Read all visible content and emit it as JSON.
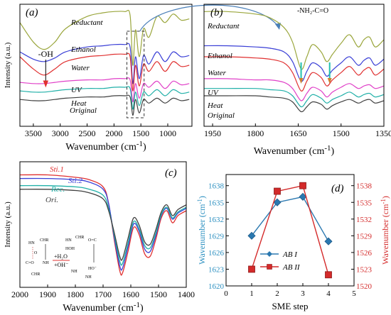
{
  "chart_data": [
    {
      "panel_label": "(a)",
      "type": "line",
      "xlabel": "Wavenumber (cm-1)",
      "xlabel_text": "Wavenumber (cm",
      "xlabel_sup": "-1",
      "xlabel_close": ")",
      "ylabel": "Intensity (a.u.)",
      "xlim": [
        3750,
        550
      ],
      "x_ticks": [
        "3500",
        "3000",
        "2500",
        "2000",
        "1500",
        "1000"
      ],
      "x_tick_values": [
        3500,
        3000,
        2500,
        2000,
        1500,
        1000
      ],
      "annotation": "-OH",
      "series": [
        {
          "name": "Reductant",
          "color": "#9aa63c",
          "x": [
            3750,
            3500,
            3300,
            3100,
            2900,
            2500,
            2200,
            2000,
            1800,
            1700,
            1650,
            1600,
            1530,
            1450,
            1350,
            1200,
            1050,
            900,
            750,
            600
          ],
          "y": [
            0.9,
            0.74,
            0.68,
            0.74,
            0.85,
            0.95,
            0.98,
            0.99,
            0.99,
            0.96,
            0.55,
            0.84,
            0.62,
            0.85,
            0.78,
            0.95,
            0.9,
            0.97,
            0.92,
            0.93
          ]
        },
        {
          "name": "Ethanol",
          "color": "#3a3fd6",
          "x": [
            3750,
            3500,
            3300,
            3100,
            2900,
            2500,
            2200,
            2000,
            1800,
            1700,
            1650,
            1600,
            1530,
            1450,
            1350,
            1200,
            1050,
            900,
            750,
            600
          ],
          "y": [
            0.66,
            0.6,
            0.58,
            0.61,
            0.66,
            0.7,
            0.71,
            0.72,
            0.72,
            0.7,
            0.4,
            0.62,
            0.44,
            0.63,
            0.56,
            0.66,
            0.58,
            0.66,
            0.62,
            0.63
          ]
        },
        {
          "name": "Water",
          "color": "#e03030",
          "x": [
            3750,
            3500,
            3300,
            3100,
            2900,
            2500,
            2200,
            2000,
            1800,
            1700,
            1650,
            1600,
            1530,
            1450,
            1350,
            1200,
            1050,
            900,
            750,
            600
          ],
          "y": [
            0.62,
            0.52,
            0.47,
            0.52,
            0.58,
            0.62,
            0.63,
            0.64,
            0.64,
            0.62,
            0.34,
            0.55,
            0.38,
            0.56,
            0.5,
            0.58,
            0.5,
            0.58,
            0.54,
            0.55
          ]
        },
        {
          "name": "UV",
          "color": "#e040c8",
          "x": [
            3750,
            3500,
            3300,
            3100,
            2900,
            2500,
            2200,
            2000,
            1800,
            1700,
            1650,
            1600,
            1530,
            1450,
            1350,
            1200,
            1050,
            900,
            750,
            600
          ],
          "y": [
            0.41,
            0.4,
            0.4,
            0.41,
            0.42,
            0.43,
            0.43,
            0.44,
            0.44,
            0.43,
            0.25,
            0.4,
            0.28,
            0.4,
            0.37,
            0.42,
            0.36,
            0.42,
            0.39,
            0.4
          ]
        },
        {
          "name": "Heat",
          "color": "#20b0a8",
          "x": [
            3750,
            3500,
            3300,
            3100,
            2900,
            2500,
            2200,
            2000,
            1800,
            1700,
            1650,
            1600,
            1530,
            1450,
            1350,
            1200,
            1050,
            900,
            750,
            600
          ],
          "y": [
            0.34,
            0.33,
            0.33,
            0.34,
            0.35,
            0.36,
            0.36,
            0.37,
            0.37,
            0.36,
            0.19,
            0.33,
            0.22,
            0.33,
            0.3,
            0.35,
            0.3,
            0.35,
            0.32,
            0.33
          ]
        },
        {
          "name": "Original",
          "color": "#404040",
          "x": [
            3750,
            3500,
            3300,
            3100,
            2900,
            2500,
            2200,
            2000,
            1800,
            1700,
            1650,
            1600,
            1530,
            1450,
            1350,
            1200,
            1050,
            900,
            750,
            600
          ],
          "y": [
            0.27,
            0.26,
            0.26,
            0.27,
            0.28,
            0.29,
            0.29,
            0.3,
            0.3,
            0.29,
            0.14,
            0.27,
            0.16,
            0.27,
            0.24,
            0.28,
            0.24,
            0.28,
            0.26,
            0.27
          ]
        }
      ]
    },
    {
      "panel_label": "(b)",
      "type": "line",
      "xlabel": "Wavenumber (cm-1)",
      "xlabel_text": "Wavenumber (cm",
      "xlabel_sup": "-1",
      "xlabel_close": ")",
      "ylabel": "Intensity (a.u.)",
      "xlim": [
        1980,
        1350
      ],
      "x_ticks": [
        "1950",
        "1800",
        "1650",
        "1500",
        "1350"
      ],
      "x_tick_values": [
        1950,
        1800,
        1650,
        1500,
        1350
      ],
      "annotation": "-NH₂-C=O",
      "series": [
        {
          "name": "Reductant",
          "color": "#9aa63c",
          "x": [
            1980,
            1900,
            1800,
            1750,
            1700,
            1670,
            1640,
            1620,
            1600,
            1570,
            1550,
            1530,
            1500,
            1470,
            1440,
            1420,
            1400,
            1380,
            1350
          ],
          "y": [
            0.99,
            0.99,
            0.97,
            0.94,
            0.86,
            0.74,
            0.52,
            0.62,
            0.72,
            0.66,
            0.58,
            0.64,
            0.73,
            0.8,
            0.7,
            0.76,
            0.78,
            0.7,
            0.76
          ]
        },
        {
          "name": "Ethanol",
          "color": "#3a3fd6",
          "x": [
            1980,
            1900,
            1800,
            1750,
            1700,
            1670,
            1640,
            1620,
            1600,
            1570,
            1550,
            1530,
            1500,
            1470,
            1440,
            1420,
            1400,
            1380,
            1350
          ],
          "y": [
            0.71,
            0.71,
            0.7,
            0.69,
            0.66,
            0.58,
            0.42,
            0.5,
            0.57,
            0.53,
            0.46,
            0.51,
            0.57,
            0.62,
            0.55,
            0.59,
            0.61,
            0.55,
            0.6
          ]
        },
        {
          "name": "Water",
          "color": "#e03030",
          "x": [
            1980,
            1900,
            1800,
            1750,
            1700,
            1670,
            1640,
            1620,
            1600,
            1570,
            1550,
            1530,
            1500,
            1470,
            1440,
            1420,
            1400,
            1380,
            1350
          ],
          "y": [
            0.62,
            0.62,
            0.61,
            0.6,
            0.57,
            0.49,
            0.34,
            0.42,
            0.49,
            0.45,
            0.38,
            0.43,
            0.49,
            0.54,
            0.47,
            0.51,
            0.53,
            0.47,
            0.52
          ]
        },
        {
          "name": "UV",
          "color": "#e040c8",
          "x": [
            1980,
            1900,
            1800,
            1750,
            1700,
            1670,
            1640,
            1620,
            1600,
            1570,
            1550,
            1530,
            1500,
            1470,
            1440,
            1420,
            1400,
            1380,
            1350
          ],
          "y": [
            0.44,
            0.44,
            0.43,
            0.43,
            0.41,
            0.36,
            0.26,
            0.32,
            0.37,
            0.34,
            0.29,
            0.33,
            0.37,
            0.4,
            0.36,
            0.38,
            0.39,
            0.36,
            0.38
          ]
        },
        {
          "name": "Heat",
          "color": "#20b0a8",
          "x": [
            1980,
            1900,
            1800,
            1750,
            1700,
            1670,
            1640,
            1620,
            1600,
            1570,
            1550,
            1530,
            1500,
            1470,
            1440,
            1420,
            1400,
            1380,
            1350
          ],
          "y": [
            0.36,
            0.36,
            0.36,
            0.35,
            0.34,
            0.3,
            0.21,
            0.26,
            0.31,
            0.28,
            0.24,
            0.27,
            0.3,
            0.33,
            0.29,
            0.31,
            0.32,
            0.29,
            0.31
          ]
        },
        {
          "name": "Original",
          "color": "#404040",
          "x": [
            1980,
            1900,
            1800,
            1750,
            1700,
            1670,
            1640,
            1620,
            1600,
            1570,
            1550,
            1530,
            1500,
            1470,
            1440,
            1420,
            1400,
            1380,
            1350
          ],
          "y": [
            0.3,
            0.3,
            0.3,
            0.29,
            0.28,
            0.25,
            0.17,
            0.21,
            0.25,
            0.23,
            0.19,
            0.22,
            0.25,
            0.27,
            0.24,
            0.26,
            0.27,
            0.24,
            0.26
          ]
        }
      ]
    },
    {
      "panel_label": "(c)",
      "type": "line",
      "xlabel": "Wavenumber (cm-1)",
      "xlabel_text": "Wavenumber (cm",
      "xlabel_sup": "-1",
      "xlabel_close": ")",
      "ylabel": "Intensity (a.u.)",
      "xlim": [
        2000,
        1400
      ],
      "x_ticks": [
        "2000",
        "1900",
        "1800",
        "1700",
        "1600",
        "1500",
        "1400"
      ],
      "x_tick_values": [
        2000,
        1900,
        1800,
        1700,
        1600,
        1500,
        1400
      ],
      "scheme_labels": [
        "+H₂O",
        "+OH⁻"
      ],
      "series": [
        {
          "name": "Sti.1",
          "color": "#e03030",
          "x": [
            2000,
            1900,
            1800,
            1750,
            1700,
            1680,
            1660,
            1640,
            1630,
            1610,
            1590,
            1570,
            1550,
            1530,
            1510,
            1490,
            1470,
            1450,
            1430,
            1400
          ],
          "y": [
            0.94,
            0.94,
            0.92,
            0.9,
            0.84,
            0.7,
            0.4,
            0.14,
            0.12,
            0.3,
            0.5,
            0.44,
            0.28,
            0.26,
            0.4,
            0.58,
            0.64,
            0.54,
            0.6,
            0.64
          ]
        },
        {
          "name": "Sti.2",
          "color": "#3a3fd6",
          "x": [
            2000,
            1900,
            1800,
            1750,
            1700,
            1680,
            1660,
            1640,
            1630,
            1610,
            1590,
            1570,
            1550,
            1530,
            1510,
            1490,
            1470,
            1450,
            1430,
            1400
          ],
          "y": [
            0.91,
            0.91,
            0.9,
            0.88,
            0.82,
            0.7,
            0.42,
            0.18,
            0.16,
            0.34,
            0.53,
            0.47,
            0.32,
            0.3,
            0.43,
            0.6,
            0.66,
            0.57,
            0.62,
            0.66
          ]
        },
        {
          "name": "Rec.",
          "color": "#20b0a8",
          "x": [
            2000,
            1900,
            1800,
            1750,
            1700,
            1680,
            1660,
            1640,
            1630,
            1610,
            1590,
            1570,
            1550,
            1530,
            1510,
            1490,
            1470,
            1450,
            1430,
            1400
          ],
          "y": [
            0.85,
            0.85,
            0.84,
            0.82,
            0.77,
            0.66,
            0.44,
            0.22,
            0.2,
            0.37,
            0.55,
            0.49,
            0.35,
            0.33,
            0.45,
            0.61,
            0.67,
            0.58,
            0.63,
            0.67
          ]
        },
        {
          "name": "Ori.",
          "color": "#404040",
          "x": [
            2000,
            1900,
            1800,
            1750,
            1700,
            1680,
            1660,
            1640,
            1630,
            1610,
            1590,
            1570,
            1550,
            1530,
            1510,
            1490,
            1470,
            1450,
            1430,
            1400
          ],
          "y": [
            0.82,
            0.82,
            0.81,
            0.79,
            0.74,
            0.64,
            0.46,
            0.26,
            0.24,
            0.41,
            0.58,
            0.52,
            0.38,
            0.36,
            0.48,
            0.63,
            0.69,
            0.6,
            0.65,
            0.69
          ]
        }
      ]
    },
    {
      "panel_label": "(d)",
      "type": "line",
      "xlabel": "SME step",
      "ylabel": "Wavenumber (cm-1)",
      "ylabel_text": "Wavenumber (cm",
      "ylabel_sup": "-1",
      "ylabel_close": ")",
      "xlim": [
        0,
        5
      ],
      "x_ticks": [
        "0",
        "1",
        "2",
        "3",
        "4",
        "5"
      ],
      "ylim_left": [
        1620,
        1640
      ],
      "ylim_right": [
        1520,
        1540
      ],
      "y_ticks_left": [
        "1620",
        "1623",
        "1626",
        "1629",
        "1632",
        "1635",
        "1638"
      ],
      "y_ticks_right": [
        "1520",
        "1523",
        "1526",
        "1529",
        "1532",
        "1535",
        "1538"
      ],
      "left_axis_color": "#2a8fc0",
      "right_axis_color": "#d42a2a",
      "series": [
        {
          "name": "AB I",
          "axis": "left",
          "color": "#2a78b0",
          "marker": "diamond",
          "x": [
            1,
            2,
            3,
            4
          ],
          "y": [
            1629,
            1635,
            1636,
            1628
          ]
        },
        {
          "name": "AB II",
          "axis": "right",
          "color": "#d42a2a",
          "marker": "square",
          "x": [
            1,
            2,
            3,
            4
          ],
          "y": [
            1523,
            1537,
            1538,
            1522
          ]
        }
      ]
    }
  ]
}
